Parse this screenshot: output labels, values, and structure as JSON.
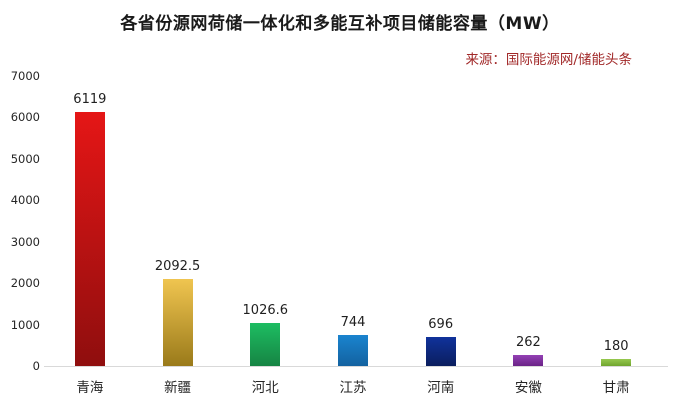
{
  "title": "各省份源网荷储一体化和多能互补项目储能容量（MW）",
  "source": "来源：国际能源网/储能头条",
  "chart_data": {
    "type": "bar",
    "title": "各省份源网荷储一体化和多能互补项目储能容量（MW）",
    "annotation_source": "来源：国际能源网/储能头条",
    "categories": [
      "青海",
      "新疆",
      "河北",
      "江苏",
      "河南",
      "安徽",
      "甘肃"
    ],
    "values": [
      6119,
      2092.5,
      1026.6,
      744,
      696,
      262,
      180
    ],
    "value_labels": [
      "6119",
      "2092.5",
      "1026.6",
      "744",
      "696",
      "262",
      "180"
    ],
    "bar_colors": [
      {
        "top": "#e51616",
        "bottom": "#8f0e0e"
      },
      {
        "top": "#f0c550",
        "bottom": "#9a7a1a"
      },
      {
        "top": "#1dbd62",
        "bottom": "#168443"
      },
      {
        "top": "#1a84cf",
        "bottom": "#1362a0"
      },
      {
        "top": "#10329b",
        "bottom": "#0b1e5e"
      },
      {
        "top": "#9440b4",
        "bottom": "#6a2387"
      },
      {
        "top": "#97c94f",
        "bottom": "#70a52f"
      }
    ],
    "xlabel": "",
    "ylabel": "",
    "ylim": [
      0,
      7000
    ],
    "y_ticks": [
      0,
      1000,
      2000,
      3000,
      4000,
      5000,
      6000,
      7000
    ],
    "grid": false,
    "legend": false,
    "value_labels_shown": true
  },
  "colors": {
    "title_text": "#1a1a1a",
    "source_text": "#a12828",
    "axis_line": "#d9d9d9",
    "tick_text": "#262626",
    "value_text": "#1f1f1f"
  }
}
